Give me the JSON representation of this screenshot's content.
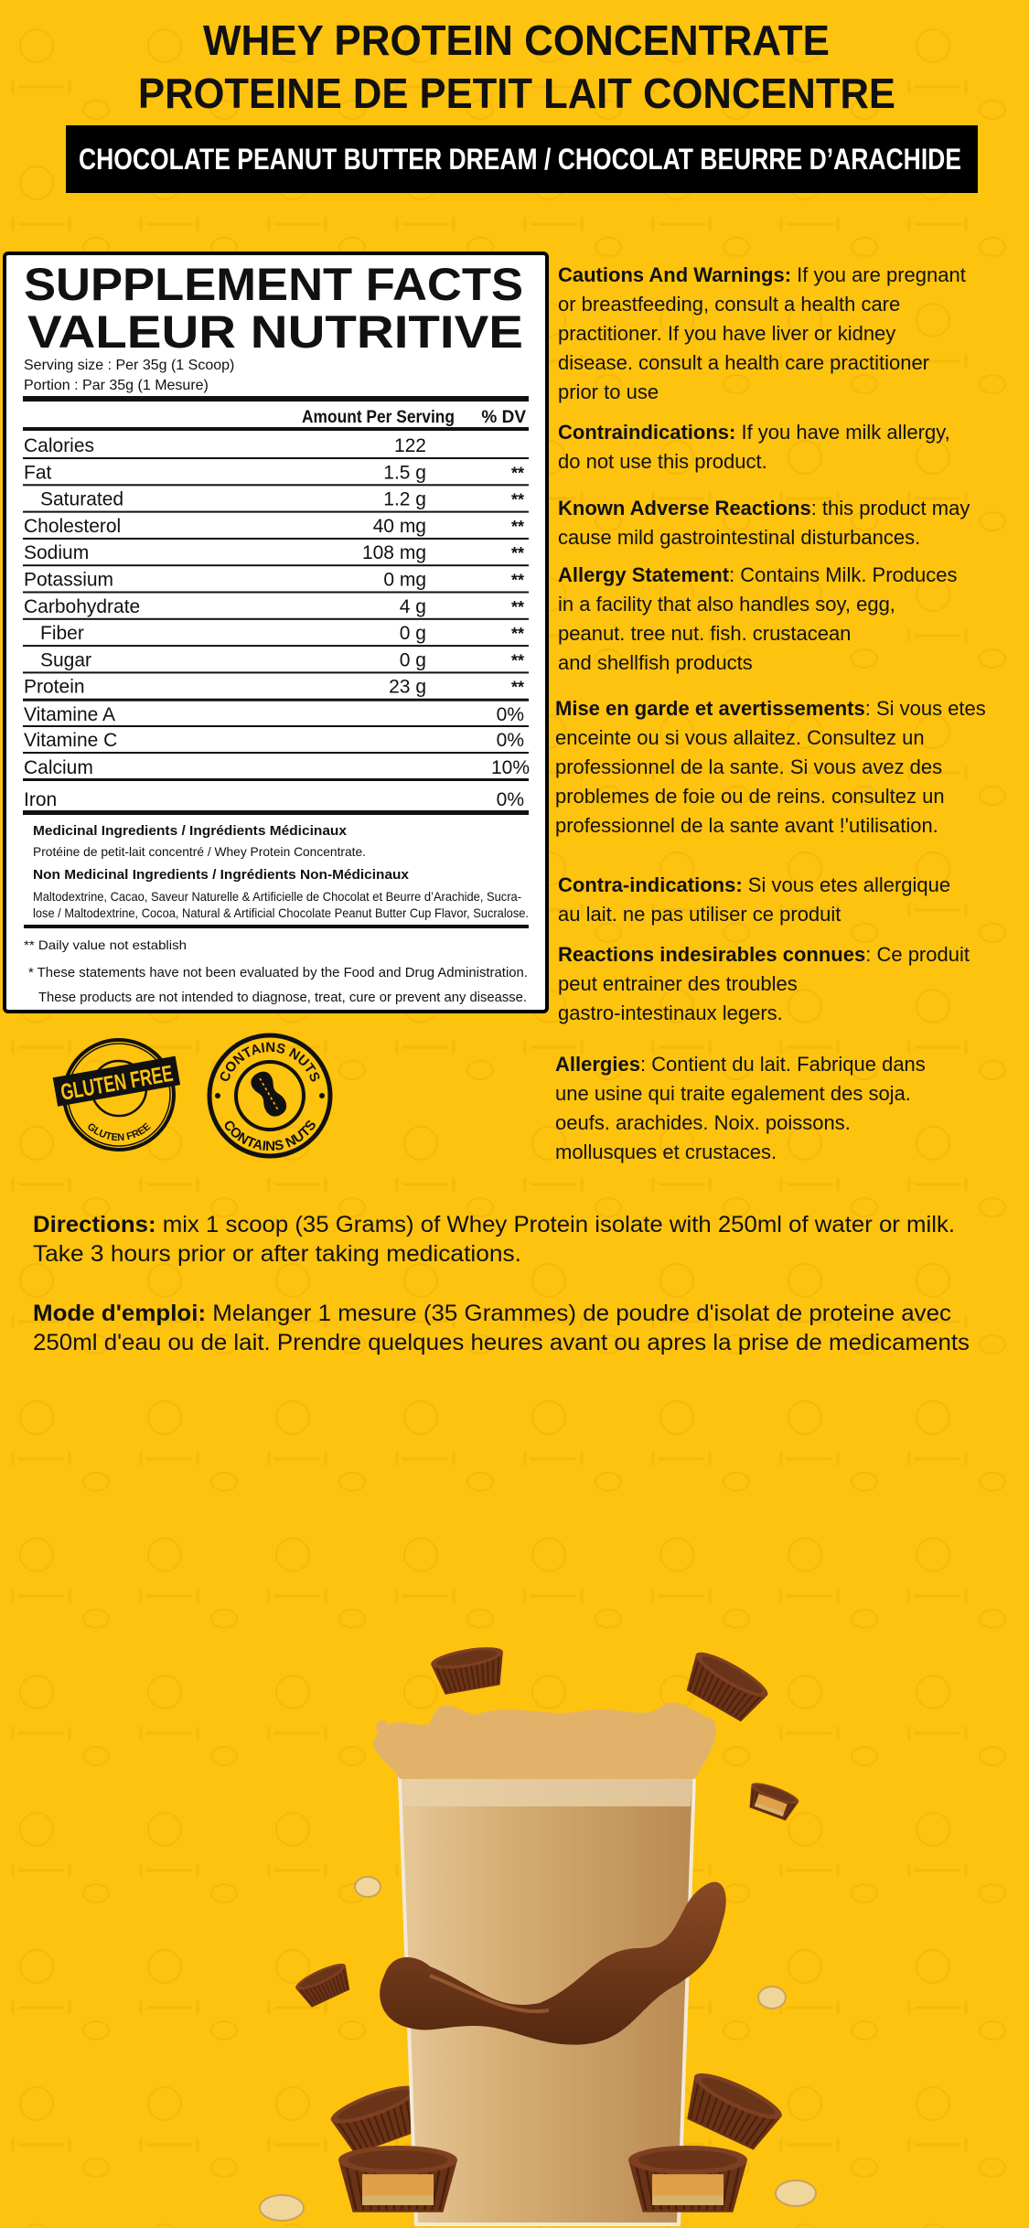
{
  "colors": {
    "background": "#FEC30E",
    "text": "#111111",
    "label_bg": "#FFFFFF",
    "banner_bg": "#000000",
    "banner_text": "#FFFFFF",
    "chocolate": "#6B3518",
    "shake": "#D2A46B"
  },
  "header": {
    "title_en": "WHEY PROTEIN CONCENTRATE",
    "title_fr": "PROTEINE DE PETIT LAIT  CONCENTRE",
    "flavor": "CHOCOLATE PEANUT BUTTER DREAM  / CHOCOLAT BEURRE D’ARACHIDE"
  },
  "label": {
    "title_en": "SUPPLEMENT FACTS",
    "title_fr": "VALEUR NUTRITIVE",
    "serving_size": "Serving size : Per 35g (1 Scoop)",
    "portion": "Portion : Par 35g (1 Mesure)",
    "col_amount": "Amount Per Serving",
    "col_dv": "% DV",
    "rows": [
      {
        "name": "Calories",
        "amount": "122",
        "dv": "",
        "indent": false
      },
      {
        "name": "Fat",
        "amount": "1.5 g",
        "dv": "**",
        "indent": false
      },
      {
        "name": "Saturated",
        "amount": "1.2 g",
        "dv": "**",
        "indent": true
      },
      {
        "name": "Cholesterol",
        "amount": "40 mg",
        "dv": "**",
        "indent": false
      },
      {
        "name": "Sodium",
        "amount": "108 mg",
        "dv": "**",
        "indent": false
      },
      {
        "name": "Potassium",
        "amount": "0 mg",
        "dv": "**",
        "indent": false
      },
      {
        "name": "Carbohydrate",
        "amount": "4 g",
        "dv": "**",
        "indent": false
      },
      {
        "name": "Fiber",
        "amount": "0 g",
        "dv": "**",
        "indent": true
      },
      {
        "name": "Sugar",
        "amount": "0 g",
        "dv": "**",
        "indent": true
      },
      {
        "name": "Protein",
        "amount": "23 g",
        "dv": "**",
        "indent": false
      }
    ],
    "vitamins": [
      {
        "name": "Vitamine A",
        "dv": "0%"
      },
      {
        "name": "Vitamine C",
        "dv": "0%"
      },
      {
        "name": "Calcium",
        "dv": "10%"
      },
      {
        "name": "Iron",
        "dv": "0%"
      }
    ],
    "medicinal_heading": "Medicinal Ingredients / Ingrédients Médicinaux",
    "medicinal_text": "Protéine de petit-lait concentré / Whey Protein Concentrate.",
    "non_medicinal_heading": "Non Medicinal Ingredients / Ingrédients Non-Médicinaux",
    "non_medicinal_lines": [
      "Maltodextrine, Cacao, Saveur Naturelle & Artificielle de Chocolat et Beurre d’Arachide, Sucra-",
      "lose / Maltodextrine, Cocoa, Natural & Artificial Chocolate Peanut Butter Cup Flavor, Sucralose."
    ],
    "footnote": "** Daily value not establish",
    "disclaimer_lines": [
      "* These statements have not been evaluated by the Food and Drug Administration.",
      "These products are not intended to diagnose, treat, cure or prevent any diseasse."
    ]
  },
  "warnings": [
    {
      "heading": "Cautions And Warnings:",
      "first": " If you are pregnant",
      "rest": [
        "or breastfeeding, consult a health care",
        "practitioner. If you have liver or kidney",
        "disease. consult a health care practitioner",
        " prior to use"
      ]
    },
    {
      "heading": "Contraindications:",
      "first": " If you have milk allergy,",
      "rest": [
        "do not use this product."
      ]
    },
    {
      "heading": "Known Adverse Reactions",
      "first": ": this product may",
      "rest": [
        "cause mild gastrointestinal disturbances."
      ]
    },
    {
      "heading": "Allergy Statement",
      "first": ": Contains Milk. Produces",
      "rest": [
        "in a facility that also handles soy, egg,",
        "peanut. tree nut. fish. crustacean",
        "and shellfish products"
      ]
    },
    {
      "heading": "Mise en garde et avertissements",
      "first": ": Si vous etes",
      "rest": [
        "enceinte ou si vous allaitez. Consultez un",
        "professionnel de la sante. Si vous avez des",
        "problemes de foie ou de reins. consultez un",
        "professionnel de la sante avant !'utilisation."
      ]
    },
    {
      "heading": "Contra-indications:",
      "first": " Si vous etes allergique",
      "rest": [
        "au lait. ne pas utiliser ce produit"
      ]
    },
    {
      "heading": "Reactions indesirables connues",
      "first": ": Ce produit",
      "rest": [
        "peut entrainer des troubles",
        "gastro-intestinaux legers."
      ]
    },
    {
      "heading": "Allergies",
      "first": ": Contient du lait. Fabrique dans",
      "rest": [
        "une usine qui traite egalement des soja.",
        "oeufs. arachides. Noix. poissons.",
        "mollusques et crustaces."
      ]
    }
  ],
  "badges": {
    "gluten_free": "GLUTEN FREE",
    "gluten_free_small": "GLUTEN FREE",
    "contains_nuts_top": "CONTAINS NUTS",
    "contains_nuts_bottom": "CONTAINS NUTS",
    "icons": [
      "gluten-free-stamp",
      "peanut-icon"
    ]
  },
  "directions": {
    "en_label": "Directions:",
    "en_line1": " mix 1 scoop (35 Grams) of Whey Protein isolate with 250ml of water or milk.",
    "en_line2": "Take 3 hours prior or after taking medications.",
    "fr_label": "Mode d'emploi:",
    "fr_line1": " Melanger 1 mesure (35 Grammes) de poudre d'isolat de proteine avec",
    "fr_line2": "250ml d'eau ou de lait. Prendre quelques heures avant ou apres la prise de medicaments"
  }
}
